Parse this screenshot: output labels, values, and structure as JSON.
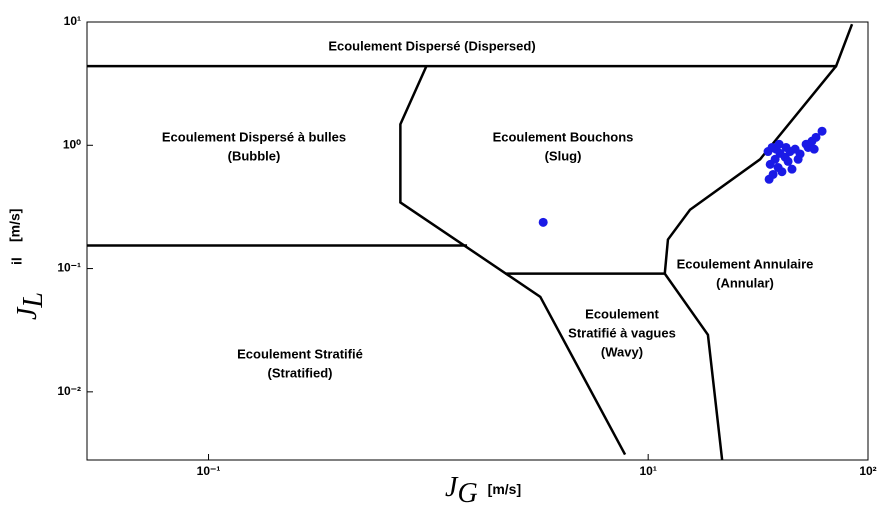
{
  "chart_data": {
    "type": "scatter",
    "xlim": [
      0.028,
      100
    ],
    "ylim": [
      0.0028,
      10
    ],
    "log_x": true,
    "log_y": true,
    "xticks": [
      {
        "value": 0.1,
        "label": "10⁻¹"
      },
      {
        "value": 10,
        "label": "10¹"
      },
      {
        "value": 100,
        "label": "10²"
      }
    ],
    "yticks": [
      {
        "value": 0.01,
        "label": "10⁻²"
      },
      {
        "value": 0.1,
        "label": "10⁻¹"
      },
      {
        "value": 1,
        "label": "10⁰"
      },
      {
        "value": 10,
        "label": "10¹"
      }
    ],
    "xlabel_symbol": "J",
    "xlabel_subscript": "G",
    "xlabel_unit": "[m/s]",
    "ylabel_symbol": "J",
    "ylabel_subscript": "L",
    "ylabel_extra": "il",
    "ylabel_unit": "[m/s]",
    "line_color": "#000000",
    "boundaries": [
      {
        "x": [
          0.028,
          71.6,
          84.6
        ],
        "y": [
          4.39,
          4.39,
          9.6
        ]
      },
      {
        "x": [
          0.98,
          0.746,
          0.746,
          3.23,
          7.85
        ],
        "y": [
          4.39,
          1.48,
          0.344,
          0.059,
          0.0031
        ]
      },
      {
        "x": [
          0.028,
          1.5
        ],
        "y": [
          0.154,
          0.154
        ]
      },
      {
        "x": [
          2.24,
          11.9,
          18.7,
          21.7
        ],
        "y": [
          0.091,
          0.091,
          0.029,
          0.0028
        ]
      },
      {
        "x": [
          11.9,
          12.3,
          15.5,
          32.3,
          71.6
        ],
        "y": [
          0.091,
          0.172,
          0.3,
          0.77,
          4.39
        ]
      }
    ],
    "points": {
      "color": "#1a1ae6",
      "x": [
        3.33,
        35.1,
        36.6,
        38.2,
        39.8,
        37.8,
        35.9,
        39.0,
        42.0,
        44.2,
        46.6,
        43.3,
        40.6,
        37.0,
        35.5,
        45.1,
        48.1,
        53.4,
        55.6,
        58.0,
        61.8,
        52.3,
        56.9,
        39.4,
        42.4,
        49.1
      ],
      "y": [
        0.237,
        0.89,
        0.96,
        0.93,
        0.86,
        0.77,
        0.7,
        0.66,
        0.8,
        0.89,
        0.93,
        0.74,
        0.61,
        0.58,
        0.53,
        0.64,
        0.77,
        0.96,
        1.08,
        1.16,
        1.3,
        1.02,
        0.93,
        1.02,
        0.96,
        0.85
      ]
    },
    "annotations": [
      [
        "Ecoulement Dispersé (Dispersed)"
      ],
      [
        "Ecoulement Dispersé à bulles",
        "(Bubble)"
      ],
      [
        "Ecoulement Bouchons",
        "(Slug)"
      ],
      [
        "Ecoulement Annulaire",
        "(Annular)"
      ],
      [
        "Ecoulement",
        "Stratifié à vagues",
        "(Wavy)"
      ],
      [
        "Ecoulement Stratifié",
        "(Stratified)"
      ]
    ]
  }
}
